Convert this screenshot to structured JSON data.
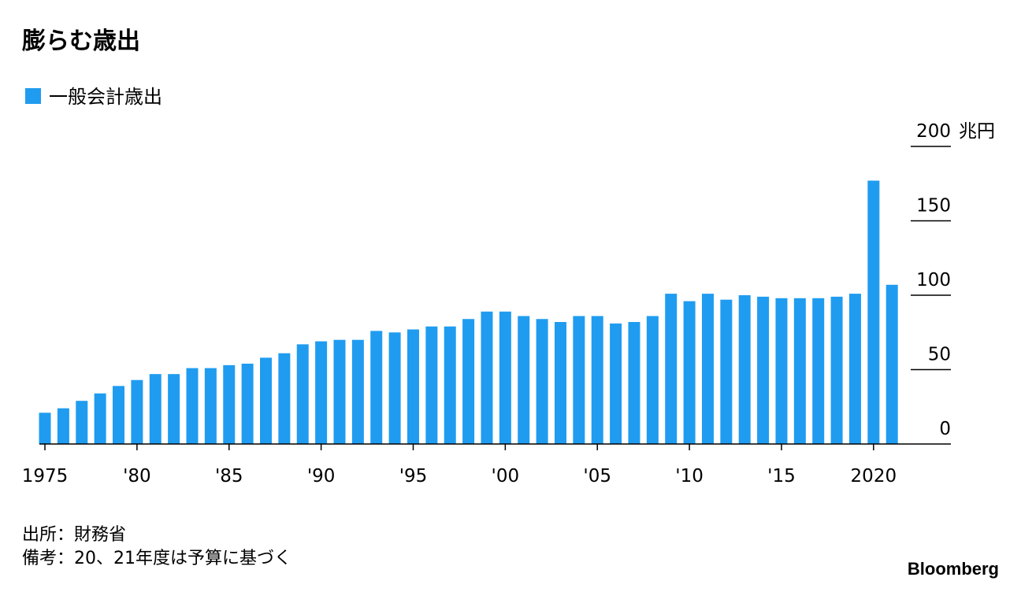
{
  "chart_data": {
    "type": "bar",
    "title": "膨らむ歳出",
    "series": [
      {
        "name": "一般会計歳出",
        "color": "#1f9cf0",
        "values": [
          21,
          24,
          29,
          34,
          39,
          43,
          47,
          47,
          51,
          51,
          53,
          54,
          58,
          61,
          67,
          69,
          70,
          70,
          76,
          75,
          77,
          79,
          79,
          84,
          89,
          89,
          86,
          84,
          82,
          86,
          86,
          81,
          82,
          86,
          101,
          96,
          101,
          97,
          100,
          99,
          98,
          98,
          98,
          99,
          101,
          177,
          107
        ]
      }
    ],
    "x": [
      1975,
      1976,
      1977,
      1978,
      1979,
      1980,
      1981,
      1982,
      1983,
      1984,
      1985,
      1986,
      1987,
      1988,
      1989,
      1990,
      1991,
      1992,
      1993,
      1994,
      1995,
      1996,
      1997,
      1998,
      1999,
      2000,
      2001,
      2002,
      2003,
      2004,
      2005,
      2006,
      2007,
      2008,
      2009,
      2010,
      2011,
      2012,
      2013,
      2014,
      2015,
      2016,
      2017,
      2018,
      2019,
      2020,
      2021
    ],
    "xlim": [
      1974.7,
      2024.2
    ],
    "xticks": [
      1975,
      {
        "value": 1980,
        "label": "'80"
      },
      {
        "value": 1985,
        "label": "'85"
      },
      {
        "value": 1990,
        "label": "'90"
      },
      {
        "value": 1995,
        "label": "'95"
      },
      {
        "value": 2000,
        "label": "'00"
      },
      {
        "value": 2005,
        "label": "'05"
      },
      {
        "value": 2010,
        "label": "'10"
      },
      {
        "value": 2015,
        "label": "'15"
      },
      2020
    ],
    "ylim": [
      0,
      200
    ],
    "yticks": [
      0,
      50,
      100,
      150,
      200
    ],
    "y_unit": "兆円",
    "source": "出所：財務省",
    "note": "備考：20、21年度は予算に基づく",
    "brand": "Bloomberg"
  }
}
